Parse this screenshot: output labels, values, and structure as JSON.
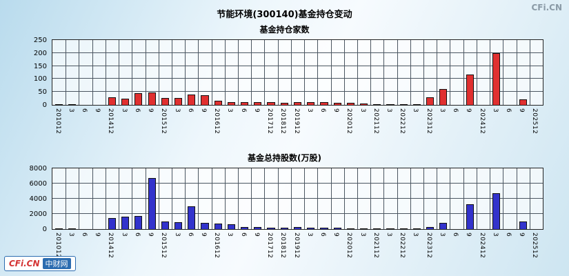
{
  "header": {
    "main_title": "节能环境(300140)基金持仓变动",
    "watermark": "CFi.CN"
  },
  "logo": {
    "brand": "CFi.CN",
    "site": "中财网"
  },
  "colors": {
    "grid": "#4a5560",
    "bar_top": "#e03030",
    "bar_bottom": "#3333cc",
    "background_tint": "#cde5f1"
  },
  "chart_data": [
    {
      "type": "bar",
      "title": "基金持仓家数",
      "categories": [
        "201012",
        "3",
        "6",
        "9",
        "201412",
        "3",
        "6",
        "9",
        "201512",
        "3",
        "6",
        "9",
        "201612",
        "3",
        "6",
        "9",
        "201712",
        "201812",
        "201912",
        "3",
        "6",
        "9",
        "202012",
        "3",
        "202112",
        "3",
        "202212",
        "3",
        "202312",
        "3",
        "6",
        "9",
        "202412",
        "3",
        "6",
        "9",
        "202512"
      ],
      "values": [
        2,
        1,
        0,
        0,
        30,
        25,
        45,
        47,
        27,
        26,
        40,
        38,
        15,
        12,
        10,
        10,
        10,
        9,
        12,
        11,
        10,
        9,
        8,
        6,
        4,
        2,
        2,
        1,
        30,
        62,
        0,
        118,
        0,
        200,
        0,
        20,
        0
      ],
      "xlabel": "",
      "ylabel": "",
      "ylim": [
        0,
        250
      ],
      "yticks": [
        0,
        50,
        100,
        150,
        200,
        250
      ],
      "bar_color": "#e03030",
      "grid": true,
      "legend": "none"
    },
    {
      "type": "bar",
      "title": "基金总持股数(万股)",
      "categories": [
        "201012",
        "3",
        "6",
        "9",
        "201412",
        "3",
        "6",
        "9",
        "201512",
        "3",
        "6",
        "9",
        "201612",
        "3",
        "6",
        "9",
        "201712",
        "201812",
        "201912",
        "3",
        "6",
        "9",
        "202012",
        "3",
        "202112",
        "3",
        "202212",
        "3",
        "202312",
        "3",
        "6",
        "9",
        "202412",
        "3",
        "6",
        "9",
        "202512"
      ],
      "values": [
        50,
        30,
        0,
        0,
        1500,
        1600,
        1700,
        6700,
        1000,
        900,
        3000,
        800,
        700,
        600,
        300,
        250,
        200,
        180,
        250,
        200,
        180,
        150,
        120,
        100,
        80,
        50,
        60,
        50,
        300,
        800,
        0,
        3300,
        0,
        4700,
        0,
        1000,
        0
      ],
      "xlabel": "",
      "ylabel": "",
      "ylim": [
        0,
        8000
      ],
      "yticks": [
        0,
        2000,
        4000,
        6000,
        8000
      ],
      "bar_color": "#3333cc",
      "grid": true,
      "legend": "none"
    }
  ]
}
